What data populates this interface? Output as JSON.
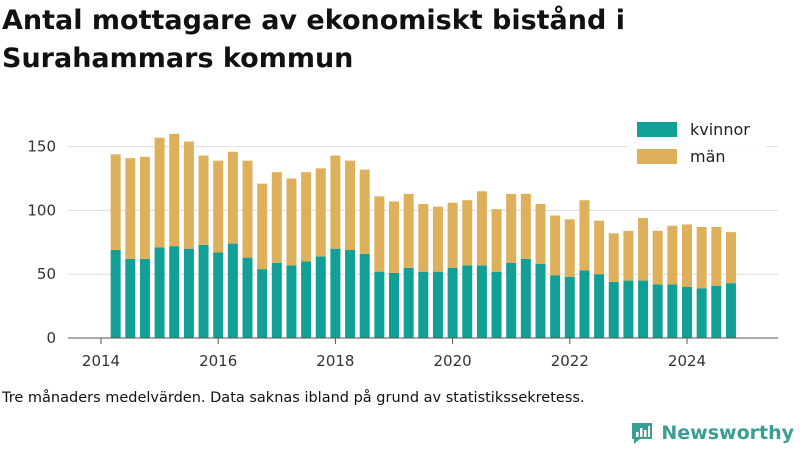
{
  "chart_data": {
    "type": "bar",
    "stacked": true,
    "title": "Antal mottagare av ekonomiskt bistånd i Surahammars kommun",
    "xlabel": "",
    "ylabel": "",
    "x_ticks": [
      "2014",
      "2016",
      "2018",
      "2020",
      "2022",
      "2024"
    ],
    "y_ticks": [
      "0",
      "50",
      "100",
      "150"
    ],
    "ylim": [
      0,
      165
    ],
    "grid": "horizontal",
    "legend_position": "top-right",
    "x": [
      "2014-04",
      "2014-07",
      "2014-10",
      "2015-01",
      "2015-04",
      "2015-07",
      "2015-10",
      "2016-01",
      "2016-04",
      "2016-07",
      "2016-10",
      "2017-01",
      "2017-04",
      "2017-07",
      "2017-10",
      "2018-01",
      "2018-04",
      "2018-07",
      "2018-10",
      "2019-01",
      "2019-04",
      "2019-07",
      "2019-10",
      "2020-01",
      "2020-04",
      "2020-07",
      "2020-10",
      "2021-01",
      "2021-04",
      "2021-07",
      "2021-10",
      "2022-01",
      "2022-04",
      "2022-07",
      "2022-10",
      "2023-01",
      "2023-04",
      "2023-07",
      "2023-10",
      "2024-01",
      "2024-04",
      "2024-07",
      "2024-10"
    ],
    "series": [
      {
        "name": "kvinnor",
        "color": "#12a096",
        "values": [
          69,
          62,
          62,
          71,
          72,
          70,
          73,
          67,
          74,
          63,
          54,
          59,
          57,
          60,
          64,
          70,
          69,
          66,
          52,
          51,
          55,
          52,
          52,
          55,
          57,
          57,
          52,
          59,
          62,
          58,
          49,
          48,
          53,
          50,
          44,
          45,
          45,
          42,
          42,
          40,
          39,
          41,
          43
        ]
      },
      {
        "name": "män",
        "color": "#deb05c",
        "values": [
          75,
          79,
          80,
          86,
          88,
          84,
          70,
          72,
          72,
          76,
          67,
          71,
          68,
          70,
          69,
          73,
          70,
          66,
          59,
          56,
          58,
          53,
          51,
          51,
          51,
          58,
          49,
          54,
          51,
          47,
          47,
          45,
          55,
          42,
          38,
          39,
          49,
          42,
          46,
          49,
          48,
          46,
          40
        ]
      }
    ]
  },
  "footnote": "Tre månaders medelvärden. Data saknas ibland på grund av statistikssekretess.",
  "brand": {
    "name": "Newsworthy",
    "color": "#3b9e93"
  }
}
